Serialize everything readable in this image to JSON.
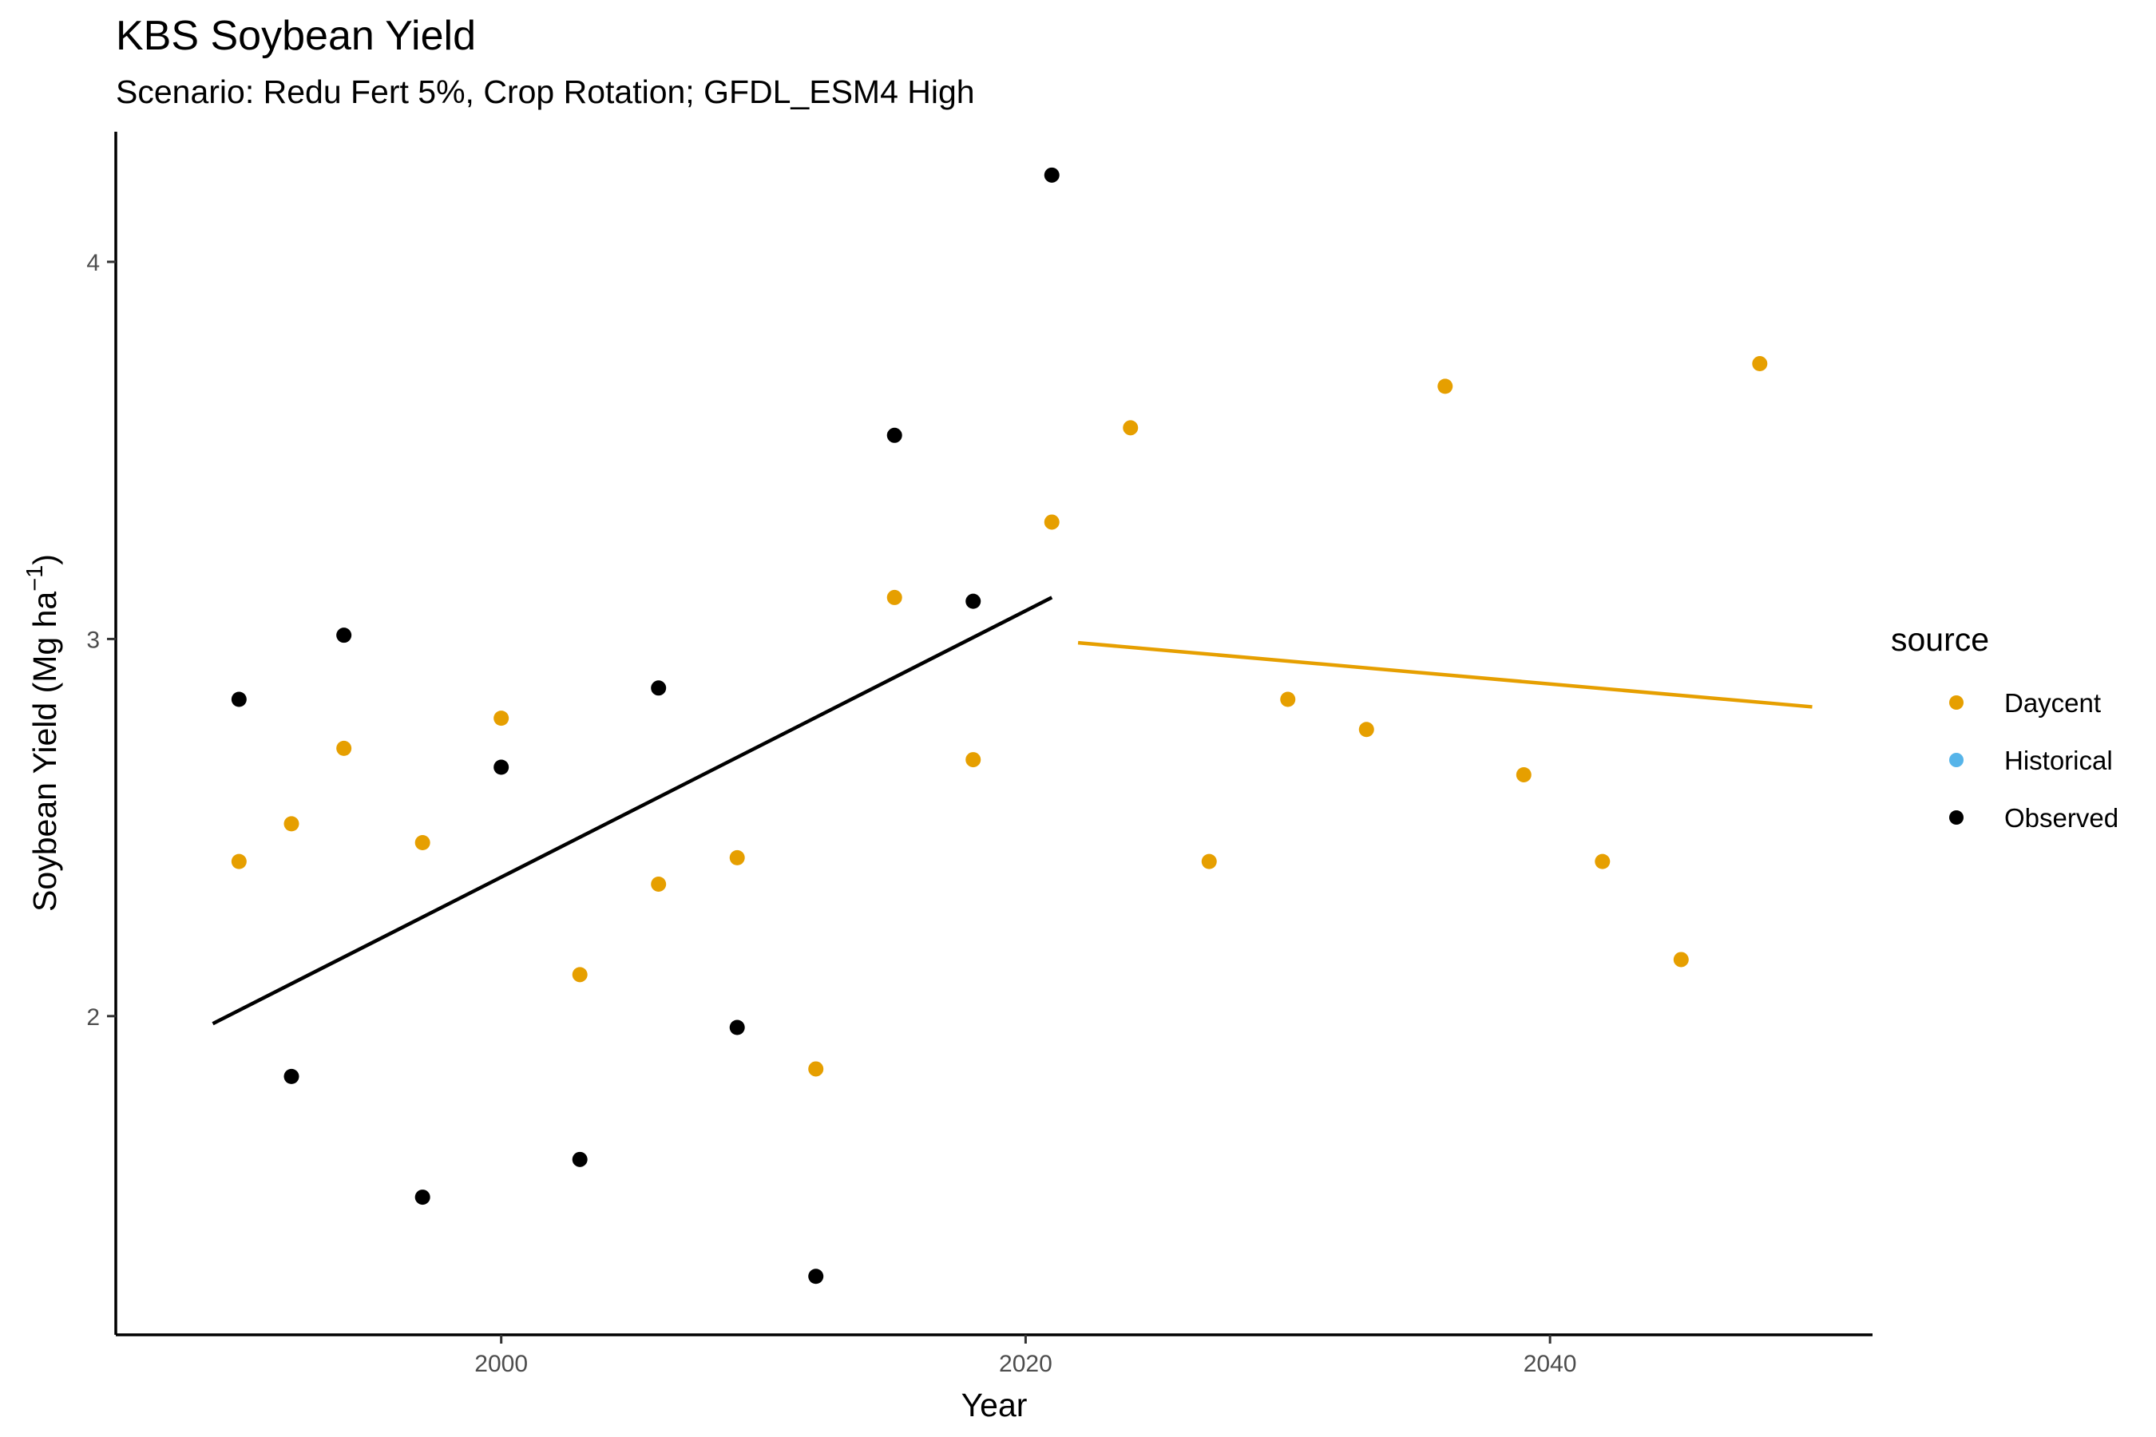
{
  "chart_data": {
    "type": "scatter",
    "title": "KBS Soybean Yield",
    "subtitle": "Scenario: Redu Fert 5%, Crop Rotation; GFDL_ESM4 High",
    "xlabel": "Year",
    "ylabel": "Soybean Yield (Mg ha",
    "ylabel_sup": "−1",
    "ylabel_close": ")",
    "xlim": [
      1985.3,
      2052.3
    ],
    "ylim": [
      1.155,
      4.345
    ],
    "x_ticks": [
      2000,
      2020,
      2040
    ],
    "y_ticks": [
      2,
      3,
      4
    ],
    "grid": false,
    "legend": {
      "title": "source",
      "placement": "right",
      "entries": [
        {
          "label": "Daycent",
          "color": "#E69F00"
        },
        {
          "label": "Historical",
          "color": "#56B4E9"
        },
        {
          "label": "Observed",
          "color": "#000000"
        }
      ]
    },
    "series": [
      {
        "name": "Daycent",
        "color": "#E69F00",
        "points": [
          [
            1990,
            2.41
          ],
          [
            1992,
            2.51
          ],
          [
            1994,
            2.71
          ],
          [
            1997,
            2.46
          ],
          [
            2000,
            2.79
          ],
          [
            2003,
            2.11
          ],
          [
            2006,
            2.35
          ],
          [
            2009,
            2.42
          ],
          [
            2012,
            1.86
          ],
          [
            2015,
            3.11
          ],
          [
            2018,
            2.68
          ],
          [
            2021,
            3.31
          ],
          [
            2024,
            3.56
          ],
          [
            2027,
            2.41
          ],
          [
            2030,
            2.84
          ],
          [
            2033,
            2.76
          ],
          [
            2036,
            3.67
          ],
          [
            2039,
            2.64
          ],
          [
            2042,
            2.41
          ],
          [
            2045,
            2.15
          ],
          [
            2048,
            3.73
          ]
        ],
        "trend": [
          [
            2022,
            2.99
          ],
          [
            2050,
            2.82
          ]
        ]
      },
      {
        "name": "Historical",
        "color": "#56B4E9",
        "points": []
      },
      {
        "name": "Observed",
        "color": "#000000",
        "points": [
          [
            1990,
            2.84
          ],
          [
            1992,
            1.84
          ],
          [
            1994,
            3.01
          ],
          [
            1997,
            1.52
          ],
          [
            2000,
            2.66
          ],
          [
            2003,
            1.62
          ],
          [
            2006,
            2.87
          ],
          [
            2009,
            1.97
          ],
          [
            2012,
            1.31
          ],
          [
            2015,
            3.54
          ],
          [
            2018,
            3.1
          ],
          [
            2021,
            4.23
          ]
        ],
        "trend": [
          [
            1989,
            1.98
          ],
          [
            2021,
            3.11
          ]
        ]
      }
    ]
  }
}
